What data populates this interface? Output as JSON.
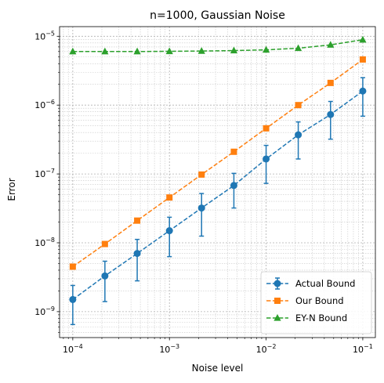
{
  "chart_data": {
    "type": "line",
    "title": "n=1000, Gaussian Noise",
    "xlabel": "Noise level",
    "ylabel": "Error",
    "xscale": "log",
    "yscale": "log",
    "xlim": [
      7.3e-05,
      0.135
    ],
    "ylim": [
      4.2e-10,
      1.38e-05
    ],
    "grid": true,
    "legend_position": "lower-right",
    "x": [
      0.0001,
      0.000215,
      0.000464,
      0.001,
      0.00215,
      0.00464,
      0.01,
      0.0215,
      0.0464,
      0.1
    ],
    "x_ticks": [
      {
        "value": 0.0001,
        "base": "10",
        "exp": "−4"
      },
      {
        "value": 0.001,
        "base": "10",
        "exp": "−3"
      },
      {
        "value": 0.01,
        "base": "10",
        "exp": "−2"
      },
      {
        "value": 0.1,
        "base": "10",
        "exp": "−1"
      }
    ],
    "y_ticks": [
      {
        "value": 1e-09,
        "base": "10",
        "exp": "−9"
      },
      {
        "value": 1e-08,
        "base": "10",
        "exp": "−8"
      },
      {
        "value": 1e-07,
        "base": "10",
        "exp": "−7"
      },
      {
        "value": 1e-06,
        "base": "10",
        "exp": "−6"
      },
      {
        "value": 1e-05,
        "base": "10",
        "exp": "−5"
      }
    ],
    "series": [
      {
        "name": "Actual Bound",
        "color": "#1f77b4",
        "marker": "circle",
        "values": [
          1.5e-09,
          3.3e-09,
          7e-09,
          1.5e-08,
          3.2e-08,
          6.8e-08,
          1.65e-07,
          3.7e-07,
          7.3e-07,
          1.6e-06
        ],
        "err_low": [
          6.5e-10,
          1.4e-09,
          2.8e-09,
          6.3e-09,
          1.25e-08,
          3.2e-08,
          7.3e-08,
          1.65e-07,
          3.2e-07,
          6.9e-07
        ],
        "err_high": [
          2.4e-09,
          5.4e-09,
          1.12e-08,
          2.35e-08,
          5.2e-08,
          1.02e-07,
          2.6e-07,
          5.7e-07,
          1.13e-06,
          2.5e-06
        ]
      },
      {
        "name": "Our Bound",
        "color": "#ff7f0e",
        "marker": "square",
        "values": [
          4.5e-09,
          9.6e-09,
          2.1e-08,
          4.55e-08,
          9.8e-08,
          2.1e-07,
          4.6e-07,
          1e-06,
          2.1e-06,
          4.6e-06
        ]
      },
      {
        "name": "EY-N Bound",
        "color": "#2ca02c",
        "marker": "triangle",
        "values": [
          6e-06,
          6e-06,
          6e-06,
          6.05e-06,
          6.1e-06,
          6.2e-06,
          6.35e-06,
          6.7e-06,
          7.5e-06,
          8.9e-06
        ]
      }
    ]
  }
}
